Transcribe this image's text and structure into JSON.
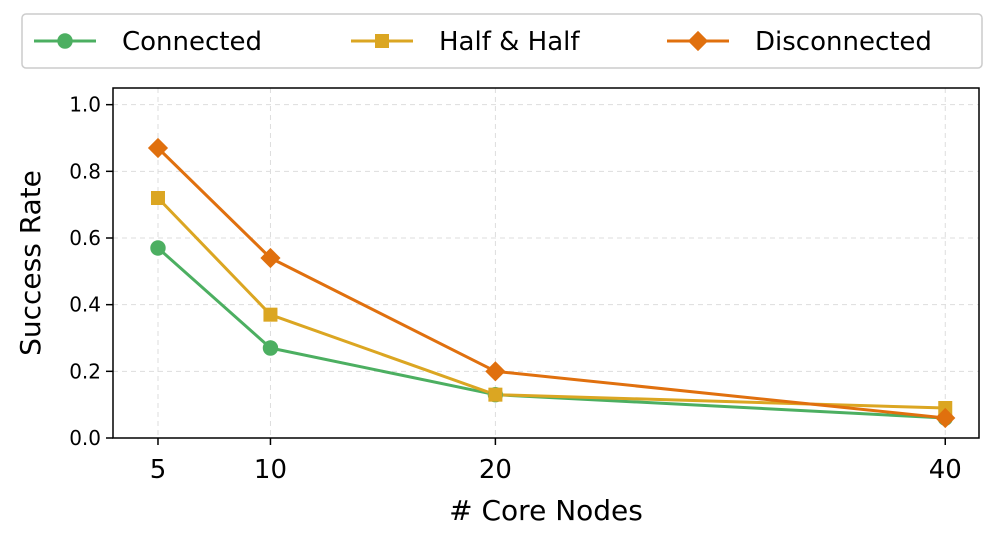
{
  "chart_data": {
    "type": "line",
    "title": "",
    "xlabel": "# Core Nodes",
    "ylabel": "Success Rate",
    "x": [
      5,
      10,
      20,
      40
    ],
    "x_tick_labels": [
      "5",
      "10",
      "20",
      "40"
    ],
    "xlim": [
      3,
      41.5
    ],
    "ylim": [
      0,
      1.05
    ],
    "y_ticks": [
      0.0,
      0.2,
      0.4,
      0.6,
      0.8,
      1.0
    ],
    "y_tick_labels": [
      "0.0",
      "0.2",
      "0.4",
      "0.6",
      "0.8",
      "1.0"
    ],
    "grid": true,
    "legend_position": "top",
    "series": [
      {
        "name": "Connected",
        "values": [
          0.57,
          0.27,
          0.13,
          0.06
        ],
        "color": "#4caf61",
        "marker": "circle"
      },
      {
        "name": "Half & Half",
        "values": [
          0.72,
          0.37,
          0.13,
          0.09
        ],
        "color": "#dba622",
        "marker": "square"
      },
      {
        "name": "Disconnected",
        "values": [
          0.87,
          0.54,
          0.2,
          0.06
        ],
        "color": "#e0700e",
        "marker": "diamond"
      }
    ]
  }
}
